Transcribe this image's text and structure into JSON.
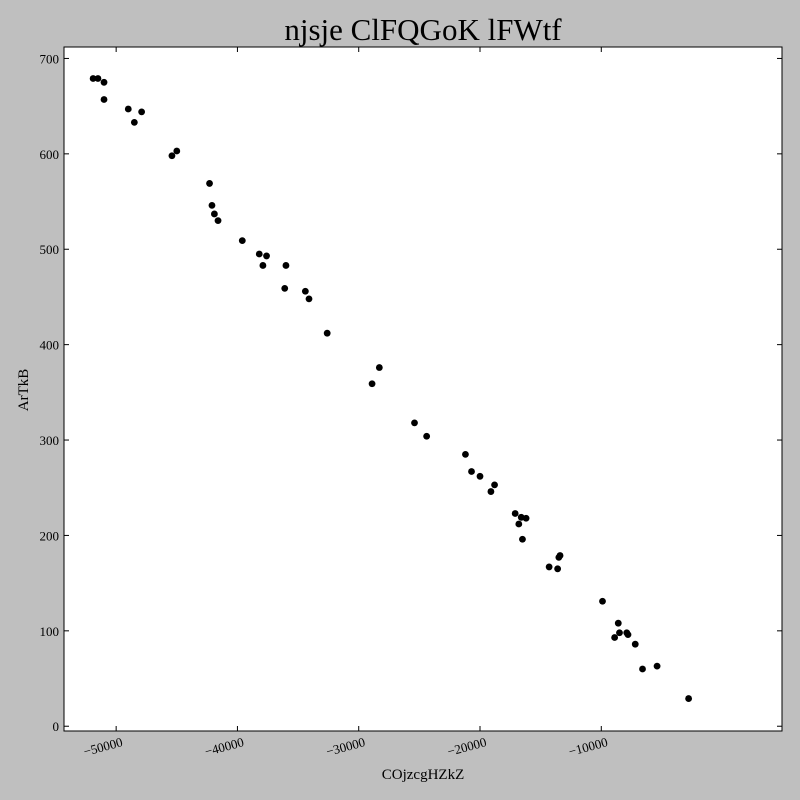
{
  "chart_data": {
    "type": "scatter",
    "title": "njsje ClFQGoK lFWtf",
    "xlabel": "COjzcgHZkZ",
    "ylabel": "ArTkB",
    "xlim": [
      -54300,
      4900
    ],
    "ylim": [
      -5,
      712
    ],
    "xticks": [
      -50000,
      -40000,
      -30000,
      -20000,
      -10000
    ],
    "xtick_labels": [
      "−50000",
      "−40000",
      "−30000",
      "−20000",
      "−10000"
    ],
    "yticks": [
      0,
      100,
      200,
      300,
      400,
      500,
      600,
      700
    ],
    "ytick_labels": [
      "0",
      "100",
      "200",
      "300",
      "400",
      "500",
      "600",
      "700"
    ],
    "grid": false,
    "marker_color": "#000000",
    "points": [
      {
        "x": -51900,
        "y": 679
      },
      {
        "x": -51500,
        "y": 679
      },
      {
        "x": -51000,
        "y": 675
      },
      {
        "x": -51000,
        "y": 657
      },
      {
        "x": -49000,
        "y": 647
      },
      {
        "x": -48500,
        "y": 633
      },
      {
        "x": -47900,
        "y": 644
      },
      {
        "x": -45400,
        "y": 598
      },
      {
        "x": -45000,
        "y": 603
      },
      {
        "x": -42300,
        "y": 569
      },
      {
        "x": -42100,
        "y": 546
      },
      {
        "x": -41900,
        "y": 537
      },
      {
        "x": -41600,
        "y": 530
      },
      {
        "x": -39600,
        "y": 509
      },
      {
        "x": -38200,
        "y": 495
      },
      {
        "x": -37900,
        "y": 483
      },
      {
        "x": -37600,
        "y": 493
      },
      {
        "x": -36100,
        "y": 459
      },
      {
        "x": -36000,
        "y": 483
      },
      {
        "x": -34400,
        "y": 456
      },
      {
        "x": -34100,
        "y": 448
      },
      {
        "x": -32600,
        "y": 412
      },
      {
        "x": -28900,
        "y": 359
      },
      {
        "x": -28300,
        "y": 376
      },
      {
        "x": -25400,
        "y": 318
      },
      {
        "x": -24400,
        "y": 304
      },
      {
        "x": -21200,
        "y": 285
      },
      {
        "x": -20700,
        "y": 267
      },
      {
        "x": -20000,
        "y": 262
      },
      {
        "x": -19100,
        "y": 246
      },
      {
        "x": -18800,
        "y": 253
      },
      {
        "x": -17100,
        "y": 223
      },
      {
        "x": -16800,
        "y": 212
      },
      {
        "x": -16600,
        "y": 219
      },
      {
        "x": -16500,
        "y": 196
      },
      {
        "x": -16200,
        "y": 218
      },
      {
        "x": -14300,
        "y": 167
      },
      {
        "x": -13600,
        "y": 165
      },
      {
        "x": -13500,
        "y": 177
      },
      {
        "x": -13400,
        "y": 179
      },
      {
        "x": -9900,
        "y": 131
      },
      {
        "x": -8900,
        "y": 93
      },
      {
        "x": -8600,
        "y": 108
      },
      {
        "x": -8500,
        "y": 98
      },
      {
        "x": -7900,
        "y": 98
      },
      {
        "x": -7800,
        "y": 96
      },
      {
        "x": -7200,
        "y": 86
      },
      {
        "x": -6600,
        "y": 60
      },
      {
        "x": -5400,
        "y": 63
      },
      {
        "x": -2800,
        "y": 29
      }
    ]
  }
}
